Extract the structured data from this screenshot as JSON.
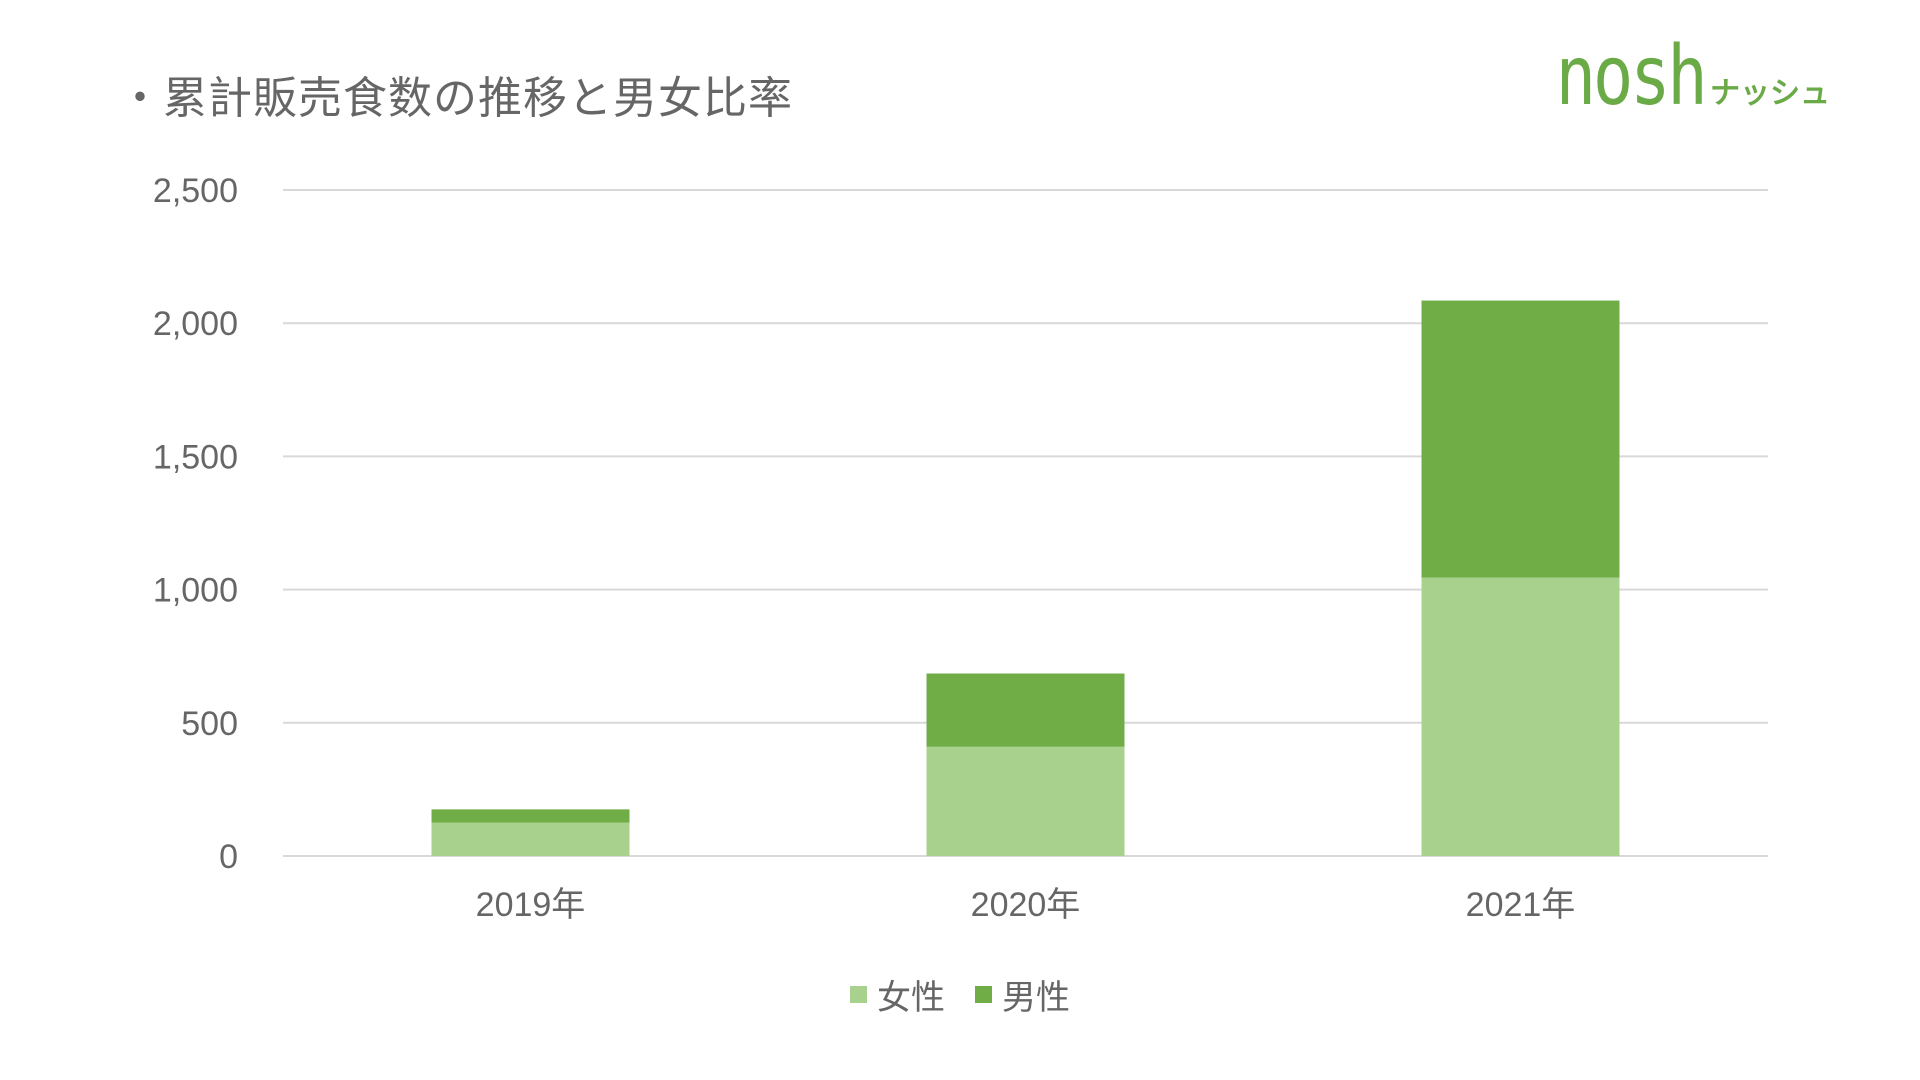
{
  "slide": {
    "title": "・累計販売食数の推移と男女比率"
  },
  "logo": {
    "main": "nosh",
    "sub": "ナッシュ"
  },
  "colors": {
    "female": "#a9d18e",
    "male": "#70ad47",
    "grid": "#d9d9d9",
    "text": "#666666"
  },
  "chart_data": {
    "type": "bar",
    "stacked": true,
    "categories": [
      "2019年",
      "2020年",
      "2021年"
    ],
    "series": [
      {
        "name": "女性",
        "values": [
          125,
          410,
          1045
        ]
      },
      {
        "name": "男性",
        "values": [
          50,
          275,
          1040
        ]
      }
    ],
    "yticks": [
      "0",
      "500",
      "1,000",
      "1,500",
      "2,000",
      "2,500"
    ],
    "ylim": [
      0,
      2500
    ],
    "grid": true,
    "legend_position": "bottom",
    "title": "",
    "xlabel": "",
    "ylabel": ""
  }
}
